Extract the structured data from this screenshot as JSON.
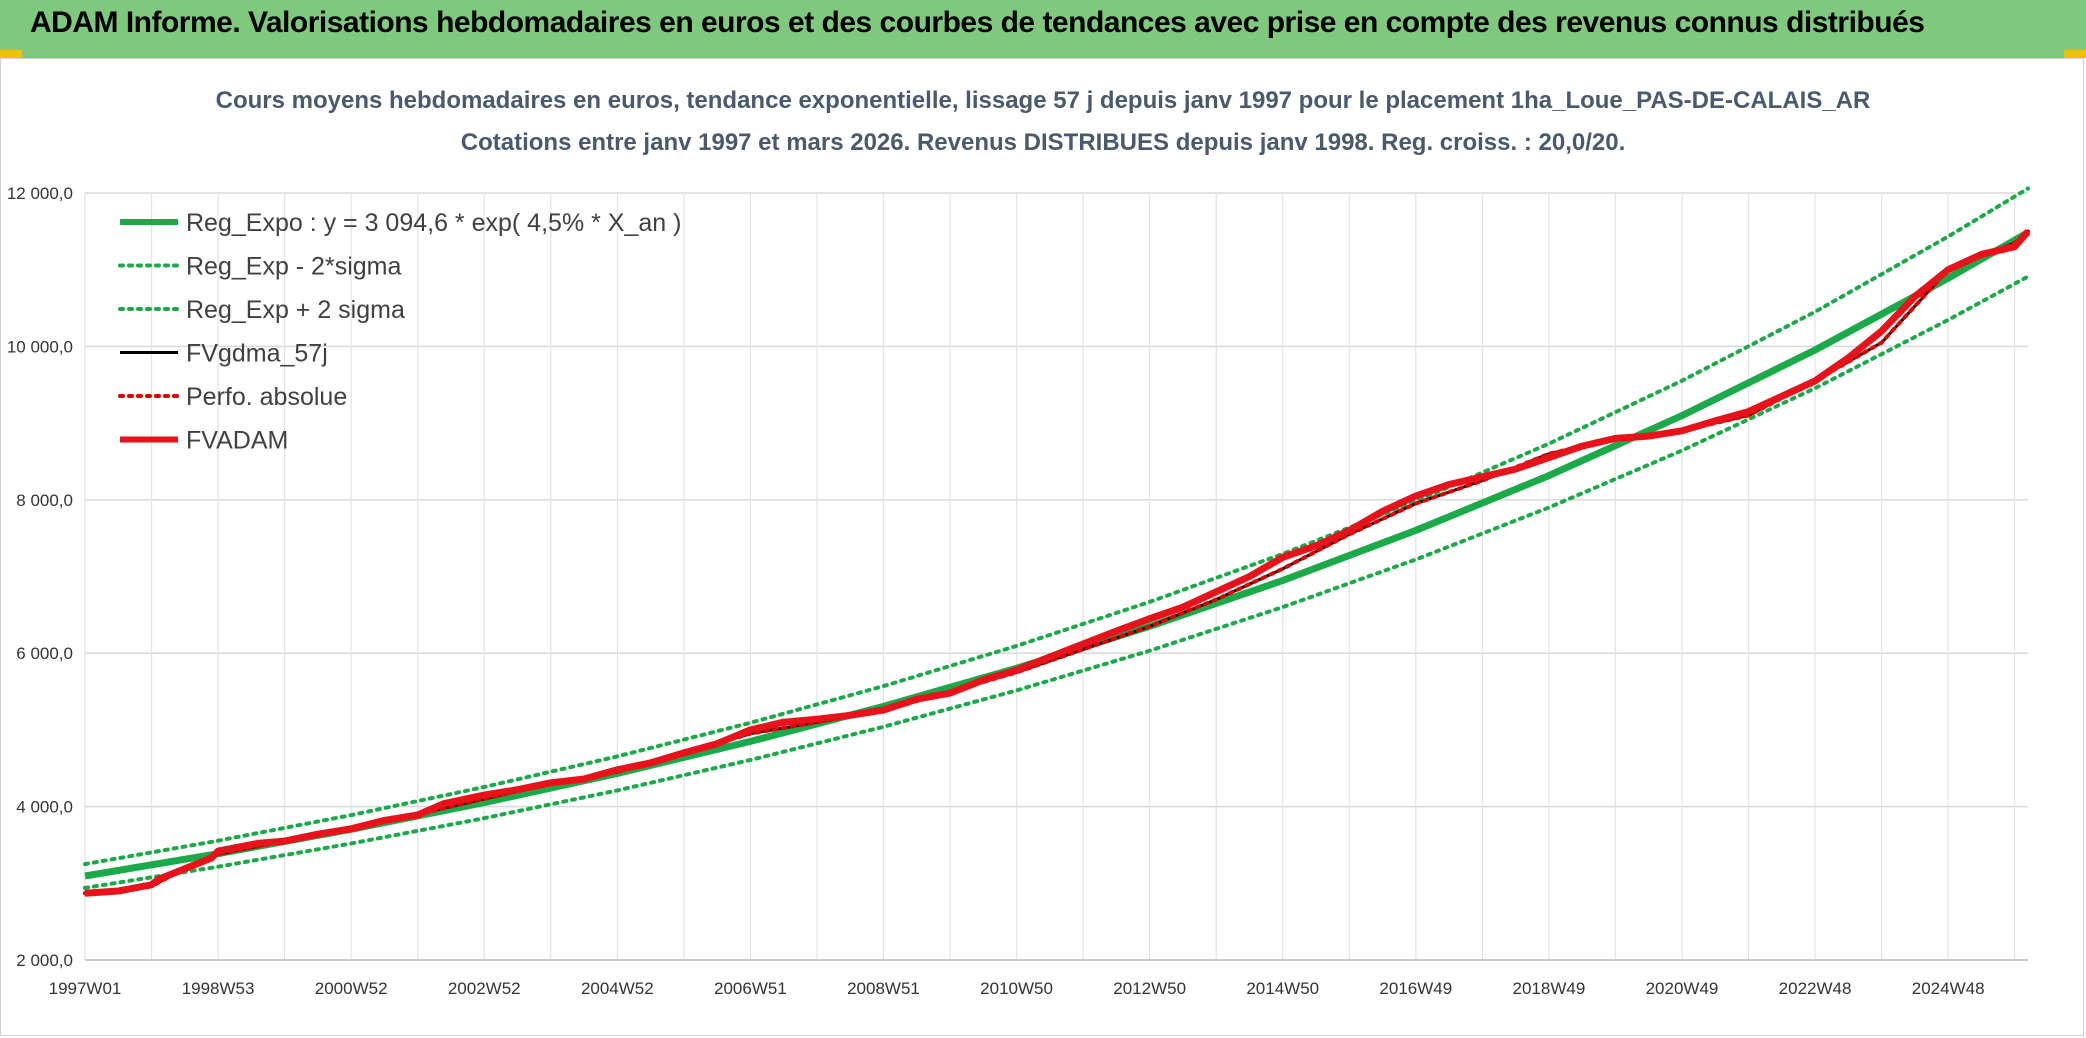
{
  "header": {
    "title": "ADAM Informe. Valorisations hebdomadaires en euros et des courbes de tendances avec prise en compte des revenus connus distribués"
  },
  "chart_data": {
    "type": "line",
    "title_line1": "Cours moyens hebdomadaires en euros, tendance exponentielle, lissage 57 j depuis janv 1997 pour le placement 1ha_Loue_PAS-DE-CALAIS_AR",
    "title_line2": "Cotations entre janv 1997 et mars 2026. Revenus DISTRIBUES depuis janv 1998. Reg. croiss. : 20,0/20.",
    "ylim": [
      2000,
      12000
    ],
    "yticks": [
      {
        "value": 2000,
        "label": "2 000,0"
      },
      {
        "value": 4000,
        "label": "4 000,0"
      },
      {
        "value": 6000,
        "label": "6 000,0"
      },
      {
        "value": 8000,
        "label": "8 000,0"
      },
      {
        "value": 10000,
        "label": "10 000,0"
      },
      {
        "value": 12000,
        "label": "12 000,0"
      }
    ],
    "xlim": [
      1997.0,
      2026.2
    ],
    "xticks": [
      {
        "value": 1997.0,
        "label": "1997W01"
      },
      {
        "value": 1999.0,
        "label": "1998W53"
      },
      {
        "value": 2001.0,
        "label": "2000W52"
      },
      {
        "value": 2003.0,
        "label": "2002W52"
      },
      {
        "value": 2005.0,
        "label": "2004W52"
      },
      {
        "value": 2007.0,
        "label": "2006W51"
      },
      {
        "value": 2009.0,
        "label": "2008W51"
      },
      {
        "value": 2011.0,
        "label": "2010W50"
      },
      {
        "value": 2013.0,
        "label": "2012W50"
      },
      {
        "value": 2015.0,
        "label": "2014W50"
      },
      {
        "value": 2017.0,
        "label": "2016W49"
      },
      {
        "value": 2019.0,
        "label": "2018W49"
      },
      {
        "value": 2021.0,
        "label": "2020W49"
      },
      {
        "value": 2023.0,
        "label": "2022W48"
      },
      {
        "value": 2025.0,
        "label": "2024W48"
      }
    ],
    "grid": true,
    "legend_position": "top-left",
    "series": [
      {
        "name": "Reg_Expo : y = 3 094,6 * exp( 4,5% *  X_an )",
        "color": "#1aaa4a",
        "style": "solid-thick",
        "x": [
          1997.0,
          1999.0,
          2001.0,
          2003.0,
          2005.0,
          2007.0,
          2009.0,
          2011.0,
          2013.0,
          2015.0,
          2017.0,
          2019.0,
          2021.0,
          2023.0,
          2025.0,
          2026.2
        ],
        "y": [
          3095,
          3386,
          3704,
          4052,
          4433,
          4850,
          5306,
          5805,
          6351,
          6948,
          7601,
          8316,
          9098,
          9953,
          10889,
          11485
        ]
      },
      {
        "name": "Reg_Exp - 2*sigma",
        "color": "#1aaa4a",
        "style": "dotted",
        "x": [
          1997.0,
          1999.0,
          2001.0,
          2003.0,
          2005.0,
          2007.0,
          2009.0,
          2011.0,
          2013.0,
          2015.0,
          2017.0,
          2019.0,
          2021.0,
          2023.0,
          2025.0,
          2026.2
        ],
        "y": [
          2940,
          3216,
          3519,
          3849,
          4211,
          4607,
          5041,
          5515,
          6033,
          6601,
          7221,
          7900,
          8643,
          9455,
          10345,
          10911
        ]
      },
      {
        "name": "Reg_Exp + 2 sigma",
        "color": "#1aaa4a",
        "style": "dotted",
        "x": [
          1997.0,
          1999.0,
          2001.0,
          2003.0,
          2005.0,
          2007.0,
          2009.0,
          2011.0,
          2013.0,
          2015.0,
          2017.0,
          2019.0,
          2021.0,
          2023.0,
          2025.0,
          2026.2
        ],
        "y": [
          3250,
          3555,
          3889,
          4255,
          4655,
          5092,
          5571,
          6095,
          6669,
          7295,
          7981,
          8732,
          9553,
          10451,
          11433,
          12059
        ]
      },
      {
        "name": "FVgdma_57j",
        "color": "#000000",
        "style": "solid",
        "x": [
          1997.0,
          1998.0,
          1998.3,
          1999.0,
          2000.0,
          2001.0,
          2002.0,
          2003.0,
          2004.0,
          2005.0,
          2006.0,
          2007.0,
          2008.0,
          2009.0,
          2010.0,
          2011.0,
          2012.0,
          2013.0,
          2014.0,
          2015.0,
          2016.0,
          2017.0,
          2018.0,
          2019.0,
          2020.0,
          2021.0,
          2022.0,
          2023.0,
          2024.0,
          2025.0,
          2026.0,
          2026.2
        ],
        "y": [
          2870,
          2960,
          3100,
          3380,
          3550,
          3700,
          3900,
          4100,
          4300,
          4450,
          4700,
          4950,
          5100,
          5250,
          5500,
          5750,
          6050,
          6350,
          6700,
          7100,
          7550,
          7950,
          8250,
          8600,
          8800,
          8900,
          9100,
          9550,
          10050,
          11000,
          11350,
          11500
        ]
      },
      {
        "name": "Perfo. absolue",
        "color": "#e00000",
        "style": "dotted",
        "x": [
          1997.0,
          1998.0,
          1998.3,
          1999.0,
          2000.0,
          2001.0,
          2002.0,
          2003.0,
          2004.0,
          2005.0,
          2006.0,
          2007.0,
          2008.0,
          2009.0,
          2010.0,
          2011.0,
          2012.0,
          2013.0,
          2014.0,
          2015.0,
          2016.0,
          2017.0,
          2018.0,
          2019.0,
          2020.0,
          2021.0,
          2022.0,
          2023.0,
          2024.0,
          2025.0,
          2026.0,
          2026.2
        ],
        "y": [
          2870,
          2960,
          3100,
          3380,
          3550,
          3700,
          3900,
          4100,
          4300,
          4450,
          4700,
          4950,
          5100,
          5250,
          5500,
          5750,
          6050,
          6350,
          6700,
          7100,
          7550,
          7950,
          8250,
          8600,
          8800,
          8900,
          9100,
          9550,
          10050,
          11000,
          11350,
          11500
        ]
      },
      {
        "name": "FVADAM",
        "color": "#e8121a",
        "style": "solid-thick",
        "x": [
          1997.0,
          1997.5,
          1998.0,
          1998.1,
          1998.3,
          1998.9,
          1999.0,
          1999.6,
          2000.0,
          2000.5,
          2001.0,
          2001.5,
          2002.0,
          2002.4,
          2003.0,
          2003.5,
          2004.0,
          2004.5,
          2005.0,
          2005.5,
          2006.0,
          2006.5,
          2007.0,
          2007.5,
          2008.0,
          2008.5,
          2009.0,
          2009.5,
          2010.0,
          2010.5,
          2011.0,
          2011.5,
          2012.0,
          2012.5,
          2013.0,
          2013.5,
          2014.0,
          2014.5,
          2015.0,
          2015.5,
          2016.0,
          2016.5,
          2017.0,
          2017.5,
          2018.0,
          2018.5,
          2019.0,
          2019.5,
          2020.0,
          2020.5,
          2021.0,
          2021.5,
          2022.0,
          2022.5,
          2023.0,
          2023.5,
          2024.0,
          2024.5,
          2025.0,
          2025.5,
          2026.0,
          2026.2
        ],
        "y": [
          2870,
          2900,
          2980,
          3050,
          3120,
          3330,
          3420,
          3520,
          3550,
          3640,
          3710,
          3820,
          3890,
          4040,
          4150,
          4220,
          4310,
          4360,
          4480,
          4570,
          4700,
          4820,
          5000,
          5100,
          5140,
          5190,
          5260,
          5400,
          5480,
          5650,
          5780,
          5950,
          6120,
          6290,
          6450,
          6600,
          6800,
          7000,
          7250,
          7400,
          7600,
          7850,
          8050,
          8200,
          8300,
          8400,
          8550,
          8700,
          8800,
          8830,
          8900,
          9030,
          9150,
          9350,
          9550,
          9850,
          10200,
          10650,
          11000,
          11200,
          11300,
          11500
        ]
      }
    ]
  }
}
